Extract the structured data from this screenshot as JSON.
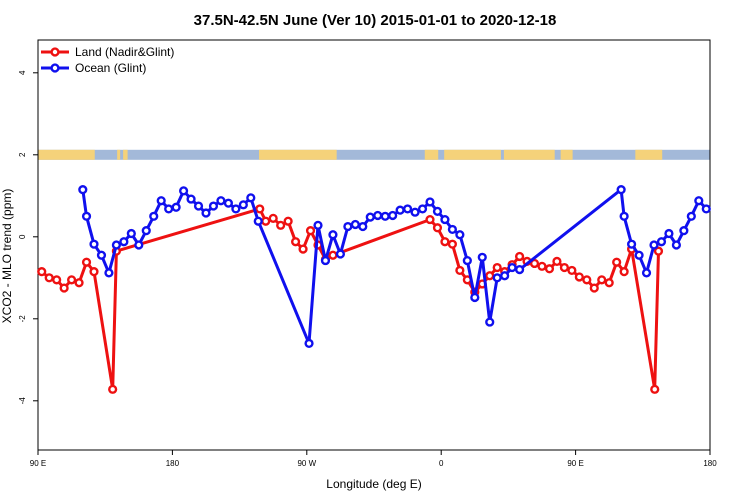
{
  "chart_data": {
    "type": "line",
    "title": "37.5N-42.5N June (Ver 10)   2015-01-01 to 2020-12-18",
    "xlabel": "Longitude (deg E)",
    "ylabel": "XCO2 - MLO trend (ppm)",
    "xlim": [
      90,
      540
    ],
    "ylim": [
      -5.2,
      4.8
    ],
    "x_ticks": [
      {
        "value": 90,
        "label": "90 E"
      },
      {
        "value": 180,
        "label": "180"
      },
      {
        "value": 270,
        "label": "90 W"
      },
      {
        "value": 360,
        "label": "0"
      },
      {
        "value": 450,
        "label": "90 E"
      },
      {
        "value": 540,
        "label": "180"
      }
    ],
    "y_ticks": [
      {
        "value": -4,
        "label": "-4"
      },
      {
        "value": -2,
        "label": "-2"
      },
      {
        "value": 0,
        "label": "0"
      },
      {
        "value": 2,
        "label": "2"
      },
      {
        "value": 4,
        "label": "4"
      }
    ],
    "grid": false,
    "legend_position": "top-left",
    "land_strip": {
      "y": 2,
      "land_color": "#f5d27a",
      "ocean_color": "#a3b9d9",
      "land_ranges": [
        [
          90,
          128
        ],
        [
          143,
          145
        ],
        [
          147,
          150
        ],
        [
          238,
          290
        ],
        [
          349,
          358
        ],
        [
          362,
          400
        ],
        [
          402,
          436
        ],
        [
          440,
          448
        ],
        [
          490,
          508
        ]
      ]
    },
    "series": [
      {
        "name": "Land (Nadir&Glint)",
        "color": "#ee1111",
        "x": [
          92.5,
          97.5,
          102.5,
          107.5,
          112.5,
          117.5,
          122.5,
          127.5,
          140,
          142.5,
          238.5,
          242.5,
          247.5,
          252.5,
          257.5,
          262.5,
          267.5,
          272.5,
          277.5,
          282.5,
          287.5,
          352.5,
          357.5,
          362.5,
          367.5,
          372.5,
          377.5,
          382.5,
          387.5,
          392.5,
          397.5,
          402.5,
          407.5,
          412.5,
          417.5,
          422.5,
          427.5,
          432.5,
          437.5,
          442.5,
          447.5,
          452.5,
          457.5,
          462.5,
          467.5,
          472.5,
          477.5,
          482.5,
          487.5,
          503,
          505.5
        ],
        "y": [
          -0.85,
          -1.0,
          -1.05,
          -1.25,
          -1.05,
          -1.12,
          -0.62,
          -0.85,
          -3.72,
          -0.35,
          0.68,
          0.38,
          0.45,
          0.28,
          0.38,
          -0.12,
          -0.3,
          0.15,
          -0.2,
          -0.55,
          -0.45,
          0.42,
          0.22,
          -0.12,
          -0.18,
          -0.82,
          -1.05,
          -1.35,
          -1.15,
          -0.95,
          -0.75,
          -0.85,
          -0.68,
          -0.48,
          -0.6,
          -0.65,
          -0.72,
          -0.78,
          -0.6,
          -0.75,
          -0.82,
          -0.98,
          -1.05,
          -1.25,
          -1.05,
          -1.12,
          -0.62,
          -0.85,
          -0.3,
          -3.72,
          -0.35
        ]
      },
      {
        "name": "Ocean (Glint)",
        "color": "#1010ee",
        "x": [
          120,
          122.5,
          127.5,
          132.5,
          137.5,
          142.5,
          147.5,
          152.5,
          157.5,
          162.5,
          167.5,
          172.5,
          177.5,
          182.5,
          187.5,
          192.5,
          197.5,
          202.5,
          207.5,
          212.5,
          217.5,
          222.5,
          227.5,
          232.5,
          237.5,
          271.5,
          277.5,
          282.5,
          287.5,
          292.5,
          297.5,
          302.5,
          307.5,
          312.5,
          317.5,
          322.5,
          327.5,
          332.5,
          337.5,
          342.5,
          347.5,
          352.5,
          357.5,
          362.5,
          367.5,
          372.5,
          377.5,
          382.5,
          387.5,
          392.5,
          397.5,
          402.5,
          407.5,
          412.5,
          480.5,
          482.5,
          487.5,
          492.5,
          497.5,
          502.5,
          507.5,
          512.5,
          517.5,
          522.5,
          527.5,
          532.5,
          537.5
        ],
        "y": [
          1.15,
          0.5,
          -0.18,
          -0.45,
          -0.88,
          -0.2,
          -0.12,
          0.08,
          -0.2,
          0.15,
          0.5,
          0.88,
          0.68,
          0.72,
          1.12,
          0.92,
          0.75,
          0.58,
          0.75,
          0.88,
          0.82,
          0.68,
          0.78,
          0.95,
          0.38,
          -2.6,
          0.28,
          -0.58,
          0.05,
          -0.42,
          0.25,
          0.3,
          0.25,
          0.48,
          0.52,
          0.5,
          0.52,
          0.65,
          0.68,
          0.6,
          0.68,
          0.85,
          0.62,
          0.42,
          0.18,
          0.05,
          -0.58,
          -1.48,
          -0.5,
          -2.08,
          -1.0,
          -0.95,
          -0.75,
          -0.8,
          1.15,
          0.5,
          -0.18,
          -0.45,
          -0.88,
          -0.2,
          -0.12,
          0.08,
          -0.2,
          0.15,
          0.5,
          0.88,
          0.68
        ]
      }
    ]
  }
}
